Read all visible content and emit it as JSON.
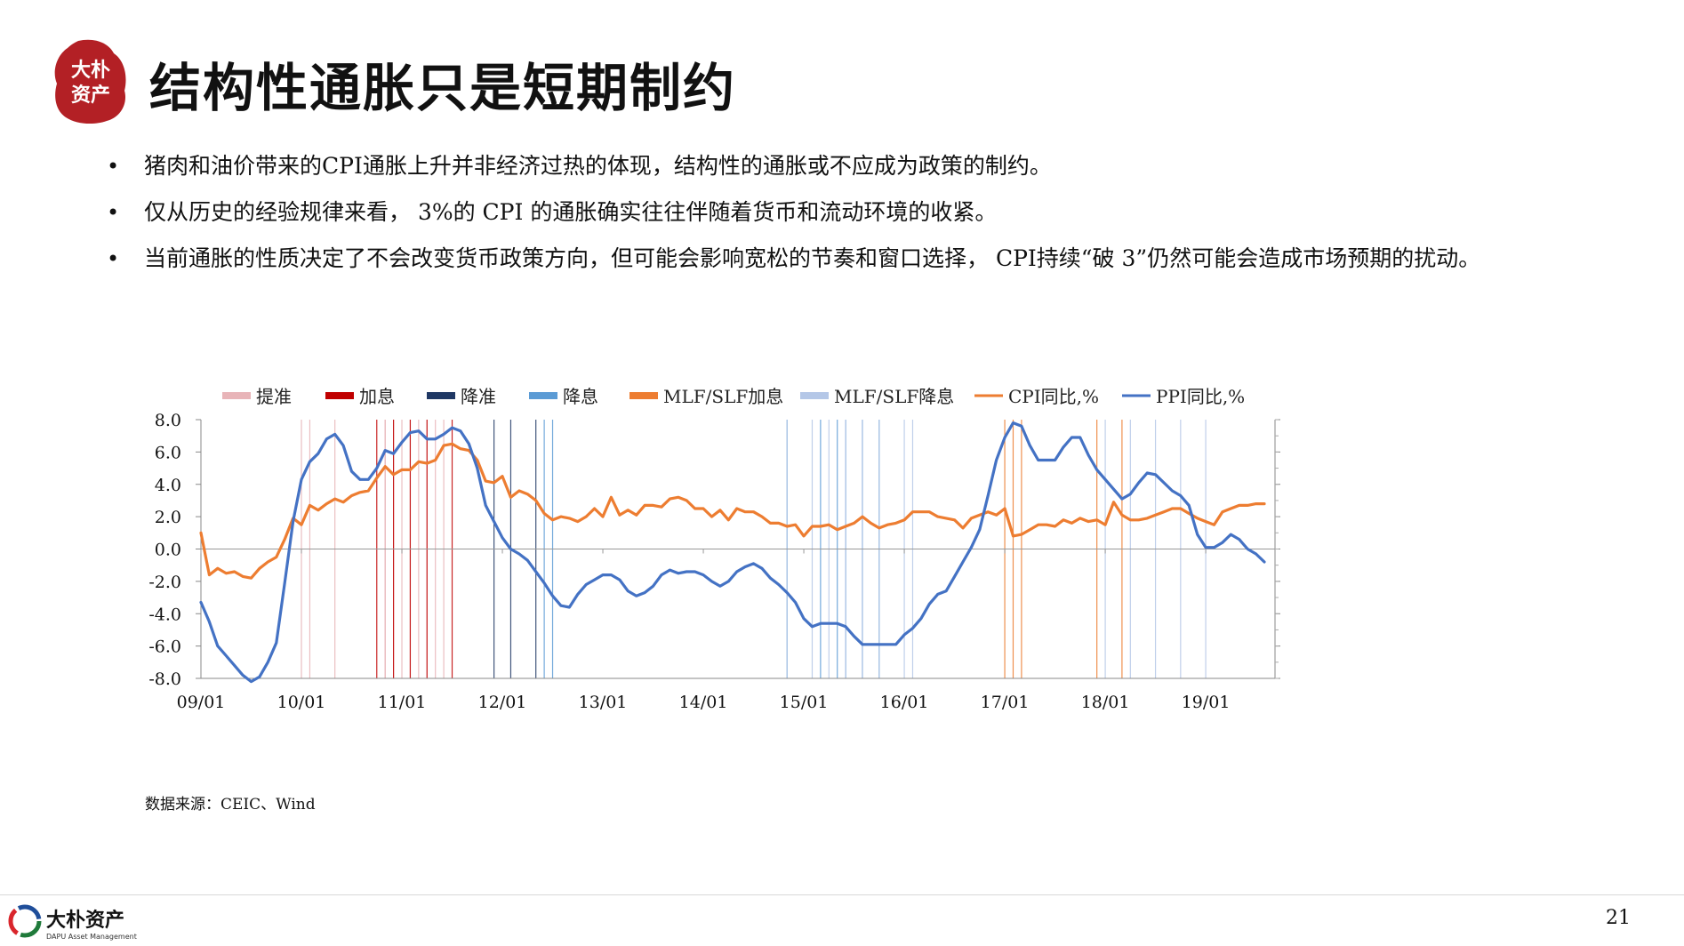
{
  "header": {
    "title": "结构性通胀只是短期制约",
    "seal_text": "大朴资产"
  },
  "bullets": [
    "猪肉和油价带来的CPI通胀上升并非经济过热的体现，结构性的通胀或不应成为政策的制约。",
    "仅从历史的经验规律来看， 3%的 CPI 的通胀确实往往伴随着货币和流动环境的收紧。",
    "当前通胀的性质决定了不会改变货币政策方向，但可能会影响宽松的节奏和窗口选择， CPI持续“破 3”仍然可能会造成市场预期的扰动。"
  ],
  "bullet_symbol": "•",
  "chart_data": {
    "type": "line",
    "x_tick_labels": [
      "09/01",
      "10/01",
      "11/01",
      "12/01",
      "13/01",
      "14/01",
      "15/01",
      "16/01",
      "17/01",
      "18/01",
      "19/01"
    ],
    "ylim": [
      -8,
      8
    ],
    "y_ticks": [
      8,
      6,
      4,
      2,
      0,
      -2,
      -4,
      -6,
      -8
    ],
    "y_tick_labels": [
      "8.0",
      "6.0",
      "4.0",
      "2.0",
      "0.0",
      "-2.0",
      "-4.0",
      "-6.0",
      "-8.0"
    ],
    "x_range": [
      "2009-01",
      "2019-08"
    ],
    "legend": [
      {
        "name": "提准",
        "color": "#e8b4b8"
      },
      {
        "name": "加息",
        "color": "#c00000"
      },
      {
        "name": "降准",
        "color": "#1f3864"
      },
      {
        "name": "降息",
        "color": "#5b9bd5"
      },
      {
        "name": "MLF/SLF加息",
        "color": "#ed7d31"
      },
      {
        "name": "MLF/SLF降息",
        "color": "#b4c7e7"
      },
      {
        "name": "CPI同比,%",
        "color": "#ed7d31"
      },
      {
        "name": "PPI同比,%",
        "color": "#4472c4"
      }
    ],
    "legend_position": "top",
    "policy_events": [
      {
        "type": "提准",
        "dates": [
          "2010-01",
          "2010-02",
          "2010-05",
          "2010-11",
          "2010-11",
          "2010-12",
          "2011-01",
          "2011-02",
          "2011-03",
          "2011-04",
          "2011-05",
          "2011-06"
        ]
      },
      {
        "type": "加息",
        "dates": [
          "2010-10",
          "2010-12",
          "2011-02",
          "2011-04",
          "2011-07"
        ]
      },
      {
        "type": "降准",
        "dates": [
          "2011-12",
          "2012-02",
          "2012-05"
        ]
      },
      {
        "type": "降息",
        "dates": [
          "2012-06",
          "2012-07",
          "2014-11",
          "2015-03",
          "2015-05",
          "2015-06",
          "2015-08",
          "2015-10"
        ]
      },
      {
        "type": "MLF/SLF加息",
        "dates": [
          "2017-01",
          "2017-02",
          "2017-03",
          "2017-12",
          "2018-03"
        ]
      },
      {
        "type": "MLF/SLF降息",
        "dates": [
          "2014-11",
          "2015-02",
          "2015-04",
          "2015-06",
          "2015-08",
          "2015-10",
          "2016-01",
          "2016-02",
          "2018-01",
          "2018-04",
          "2018-07",
          "2018-10",
          "2019-01"
        ]
      }
    ],
    "series": [
      {
        "name": "CPI同比,%",
        "color": "#ed7d31",
        "start": "2009-01",
        "values": [
          1.0,
          -1.6,
          -1.2,
          -1.5,
          -1.4,
          -1.7,
          -1.8,
          -1.2,
          -0.8,
          -0.5,
          0.6,
          1.9,
          1.5,
          2.7,
          2.4,
          2.8,
          3.1,
          2.9,
          3.3,
          3.5,
          3.6,
          4.4,
          5.1,
          4.6,
          4.9,
          4.9,
          5.4,
          5.3,
          5.5,
          6.4,
          6.5,
          6.2,
          6.1,
          5.5,
          4.2,
          4.1,
          4.5,
          3.2,
          3.6,
          3.4,
          3.0,
          2.2,
          1.8,
          2.0,
          1.9,
          1.7,
          2.0,
          2.5,
          2.0,
          3.2,
          2.1,
          2.4,
          2.1,
          2.7,
          2.7,
          2.6,
          3.1,
          3.2,
          3.0,
          2.5,
          2.5,
          2.0,
          2.4,
          1.8,
          2.5,
          2.3,
          2.3,
          2.0,
          1.6,
          1.6,
          1.4,
          1.5,
          0.8,
          1.4,
          1.4,
          1.5,
          1.2,
          1.4,
          1.6,
          2.0,
          1.6,
          1.3,
          1.5,
          1.6,
          1.8,
          2.3,
          2.3,
          2.3,
          2.0,
          1.9,
          1.8,
          1.3,
          1.9,
          2.1,
          2.3,
          2.1,
          2.5,
          0.8,
          0.9,
          1.2,
          1.5,
          1.5,
          1.4,
          1.8,
          1.6,
          1.9,
          1.7,
          1.8,
          1.5,
          2.9,
          2.1,
          1.8,
          1.8,
          1.9,
          2.1,
          2.3,
          2.5,
          2.5,
          2.2,
          1.9,
          1.7,
          1.5,
          2.3,
          2.5,
          2.7,
          2.7,
          2.8,
          2.8
        ]
      },
      {
        "name": "PPI同比,%",
        "color": "#4472c4",
        "start": "2009-01",
        "values": [
          -3.3,
          -4.5,
          -6.0,
          -6.6,
          -7.2,
          -7.8,
          -8.2,
          -7.9,
          -7.0,
          -5.8,
          -2.1,
          1.7,
          4.3,
          5.4,
          5.9,
          6.8,
          7.1,
          6.4,
          4.8,
          4.3,
          4.3,
          5.0,
          6.1,
          5.9,
          6.6,
          7.2,
          7.3,
          6.8,
          6.8,
          7.1,
          7.5,
          7.3,
          6.5,
          5.0,
          2.7,
          1.7,
          0.7,
          0.0,
          -0.3,
          -0.7,
          -1.4,
          -2.1,
          -2.9,
          -3.5,
          -3.6,
          -2.8,
          -2.2,
          -1.9,
          -1.6,
          -1.6,
          -1.9,
          -2.6,
          -2.9,
          -2.7,
          -2.3,
          -1.6,
          -1.3,
          -1.5,
          -1.4,
          -1.4,
          -1.6,
          -2.0,
          -2.3,
          -2.0,
          -1.4,
          -1.1,
          -0.9,
          -1.2,
          -1.8,
          -2.2,
          -2.7,
          -3.3,
          -4.3,
          -4.8,
          -4.6,
          -4.6,
          -4.6,
          -4.8,
          -5.4,
          -5.9,
          -5.9,
          -5.9,
          -5.9,
          -5.9,
          -5.3,
          -4.9,
          -4.3,
          -3.4,
          -2.8,
          -2.6,
          -1.7,
          -0.8,
          0.1,
          1.2,
          3.3,
          5.5,
          6.9,
          7.8,
          7.6,
          6.4,
          5.5,
          5.5,
          5.5,
          6.3,
          6.9,
          6.9,
          5.8,
          4.9,
          4.3,
          3.7,
          3.1,
          3.4,
          4.1,
          4.7,
          4.6,
          4.1,
          3.6,
          3.3,
          2.7,
          0.9,
          0.1,
          0.1,
          0.4,
          0.9,
          0.6,
          0.0,
          -0.3,
          -0.8
        ]
      }
    ]
  },
  "source": "数据来源：CEIC、Wind",
  "footer": {
    "brand_cn": "大朴资产",
    "brand_en": "DAPU Asset Management",
    "page_number": "21"
  }
}
